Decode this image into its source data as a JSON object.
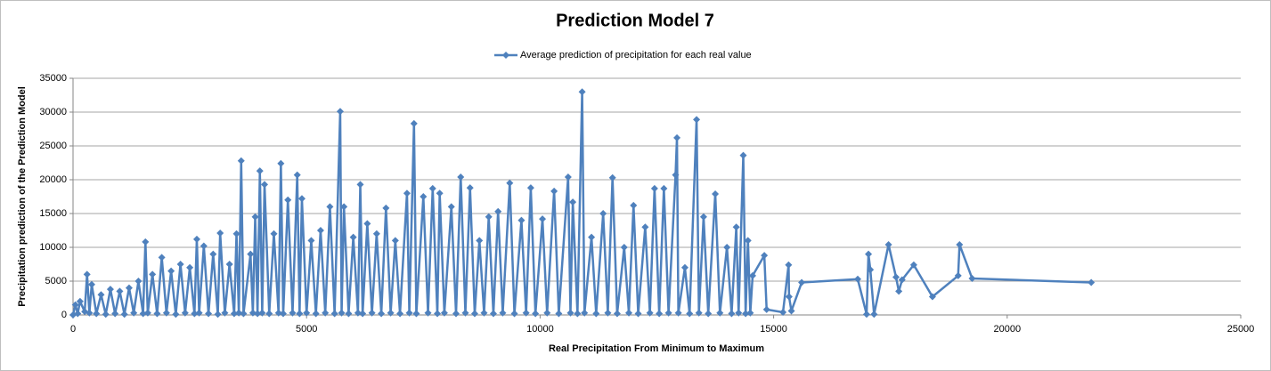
{
  "chart_data": {
    "type": "line",
    "title": "Prediction Model 7",
    "x_label": "Real Precipitation From Minimum to Maximum",
    "y_label": "Precipitation prediction of the Prediction Model",
    "xlim": [
      0,
      25000
    ],
    "xticks": [
      0,
      5000,
      10000,
      15000,
      20000,
      25000
    ],
    "ylim": [
      0,
      35000
    ],
    "yticks": [
      0,
      5000,
      10000,
      15000,
      20000,
      25000,
      30000,
      35000
    ],
    "grid": true,
    "legend": "top",
    "x": [
      0,
      50,
      100,
      150,
      250,
      300,
      350,
      400,
      500,
      600,
      700,
      800,
      900,
      1000,
      1100,
      1200,
      1300,
      1400,
      1500,
      1550,
      1600,
      1700,
      1800,
      1900,
      2000,
      2100,
      2200,
      2300,
      2400,
      2500,
      2600,
      2650,
      2700,
      2800,
      2900,
      3000,
      3100,
      3150,
      3250,
      3350,
      3450,
      3500,
      3550,
      3600,
      3650,
      3800,
      3850,
      3900,
      3950,
      4000,
      4050,
      4100,
      4200,
      4300,
      4400,
      4450,
      4500,
      4600,
      4700,
      4800,
      4850,
      4900,
      5000,
      5100,
      5200,
      5300,
      5400,
      5500,
      5600,
      5720,
      5750,
      5800,
      5900,
      6000,
      6100,
      6150,
      6200,
      6300,
      6400,
      6500,
      6600,
      6700,
      6800,
      6900,
      7000,
      7150,
      7200,
      7300,
      7350,
      7500,
      7600,
      7700,
      7800,
      7850,
      7950,
      8100,
      8200,
      8300,
      8400,
      8500,
      8600,
      8700,
      8800,
      8900,
      9000,
      9100,
      9200,
      9350,
      9450,
      9600,
      9700,
      9800,
      9900,
      10050,
      10150,
      10300,
      10400,
      10600,
      10650,
      10700,
      10800,
      10900,
      10950,
      11100,
      11200,
      11350,
      11450,
      11550,
      11650,
      11800,
      11900,
      12000,
      12100,
      12250,
      12350,
      12450,
      12550,
      12650,
      12750,
      12900,
      12930,
      12960,
      13100,
      13200,
      13350,
      13400,
      13500,
      13600,
      13750,
      13850,
      14000,
      14100,
      14200,
      14250,
      14350,
      14400,
      14450,
      14500,
      14550,
      14800,
      14850,
      15200,
      15320,
      15330,
      15380,
      15600,
      16800,
      16990,
      17030,
      17070,
      17150,
      17460,
      17620,
      17680,
      17750,
      18000,
      18400,
      18950,
      18980,
      19250,
      21800
    ],
    "series": [
      {
        "name": "Average prediction of precipitation for each real value",
        "color": "#4f81bd",
        "values": [
          0,
          1500,
          200,
          2000,
          500,
          6000,
          300,
          4500,
          200,
          3000,
          100,
          3800,
          200,
          3500,
          100,
          4000,
          300,
          5000,
          200,
          10800,
          300,
          6000,
          200,
          8500,
          300,
          6500,
          100,
          7500,
          300,
          7000,
          200,
          11200,
          300,
          10200,
          200,
          9000,
          100,
          12100,
          300,
          7500,
          200,
          12000,
          300,
          22800,
          200,
          9000,
          300,
          14500,
          200,
          21300,
          300,
          19300,
          200,
          12000,
          300,
          22400,
          200,
          17000,
          300,
          20700,
          200,
          17200,
          300,
          11000,
          200,
          12500,
          300,
          16000,
          200,
          30100,
          300,
          16000,
          200,
          11500,
          300,
          19300,
          200,
          13500,
          300,
          12000,
          200,
          15800,
          300,
          11000,
          200,
          18000,
          300,
          28300,
          200,
          17500,
          300,
          18700,
          200,
          18000,
          300,
          16000,
          200,
          20400,
          300,
          18800,
          200,
          11000,
          300,
          14500,
          200,
          15300,
          300,
          19500,
          200,
          14000,
          300,
          18800,
          200,
          14200,
          300,
          18300,
          200,
          20400,
          300,
          16700,
          200,
          33000,
          300,
          11500,
          200,
          15000,
          300,
          20300,
          200,
          10000,
          300,
          16200,
          200,
          13000,
          300,
          18700,
          200,
          18700,
          300,
          20700,
          26200,
          300,
          7000,
          200,
          28900,
          300,
          14500,
          200,
          17900,
          300,
          10000,
          200,
          13000,
          300,
          23600,
          200,
          11000,
          300,
          5800,
          8800,
          800,
          400,
          7400,
          2700,
          600,
          4800,
          5300,
          100,
          9000,
          6700,
          100,
          10400,
          5600,
          3500,
          5200,
          7400,
          2700,
          5800,
          10400,
          5400,
          4800
        ]
      }
    ]
  }
}
